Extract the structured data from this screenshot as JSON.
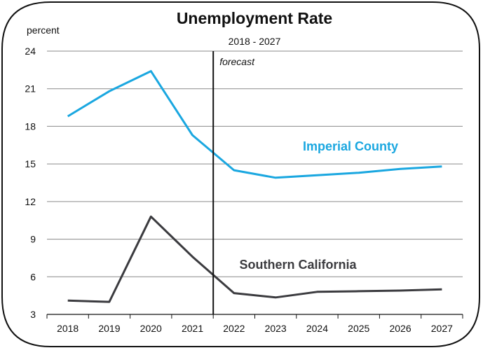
{
  "chart_data": {
    "type": "line",
    "title": "Unemployment Rate",
    "subtitle": "2018 - 2027",
    "ylabel": "percent",
    "xlabel": "",
    "ylim": [
      3,
      24
    ],
    "yticks": [
      3,
      6,
      9,
      12,
      15,
      18,
      21,
      24
    ],
    "categories": [
      "2018",
      "2019",
      "2020",
      "2021",
      "2022",
      "2023",
      "2024",
      "2025",
      "2026",
      "2027"
    ],
    "grid": true,
    "forecast_marker": {
      "after": "2021",
      "before": "2022",
      "label": "forecast"
    },
    "series": [
      {
        "name": "Imperial County",
        "color": "#1aa7e0",
        "values": [
          18.8,
          20.8,
          22.4,
          17.3,
          14.5,
          13.9,
          14.1,
          14.3,
          14.6,
          14.8
        ]
      },
      {
        "name": "Southern California",
        "color": "#3b3b3f",
        "values": [
          4.1,
          4.0,
          10.8,
          7.6,
          4.7,
          4.35,
          4.8,
          4.85,
          4.9,
          5.0
        ]
      }
    ]
  }
}
